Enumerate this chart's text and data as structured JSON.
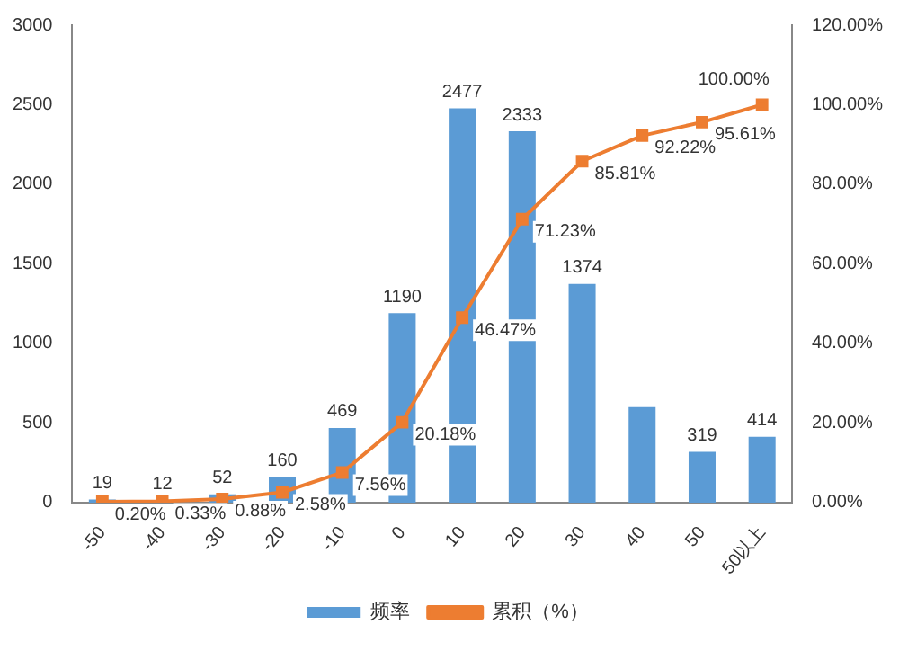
{
  "chart_data": {
    "type": "bar",
    "categories": [
      "-50",
      "-40",
      "-30",
      "-20",
      "-10",
      "0",
      "10",
      "20",
      "30",
      "40",
      "50",
      "50以上"
    ],
    "series": [
      {
        "name": "频率",
        "color": "#5b9bd5",
        "values": [
          19,
          12,
          52,
          160,
          469,
          1190,
          2477,
          2333,
          1374,
          600,
          319,
          414
        ],
        "value_labels": [
          "19",
          "12",
          "52",
          "160",
          "469",
          "1190",
          "2477",
          "2333",
          "1374",
          null,
          "319",
          "414"
        ]
      },
      {
        "name": "累积（%）",
        "type": "line",
        "axis": "y2",
        "color": "#ed7d31",
        "marker": "square",
        "values": [
          0.2,
          0.33,
          0.88,
          2.58,
          7.56,
          20.18,
          46.47,
          71.23,
          85.81,
          92.22,
          95.61,
          100.0
        ],
        "value_labels": [
          "0.20%",
          "0.33%",
          "0.88%",
          "2.58%",
          "7.56%",
          "20.18%",
          "46.47%",
          "71.23%",
          "85.81%",
          "92.22%",
          "95.61%",
          "100.00%"
        ]
      }
    ],
    "ylim": [
      0,
      3000
    ],
    "yticks": [
      0,
      500,
      1000,
      1500,
      2000,
      2500,
      3000
    ],
    "y2lim": [
      0,
      120
    ],
    "y2ticks": [
      {
        "value": 0,
        "label": "0.00%"
      },
      {
        "value": 20,
        "label": "20.00%"
      },
      {
        "value": 40,
        "label": "40.00%"
      },
      {
        "value": 60,
        "label": "60.00%"
      },
      {
        "value": 80,
        "label": "80.00%"
      },
      {
        "value": 100,
        "label": "100.00%"
      },
      {
        "value": 120,
        "label": "120.00%"
      }
    ],
    "grid": false,
    "legend": "bottom"
  }
}
